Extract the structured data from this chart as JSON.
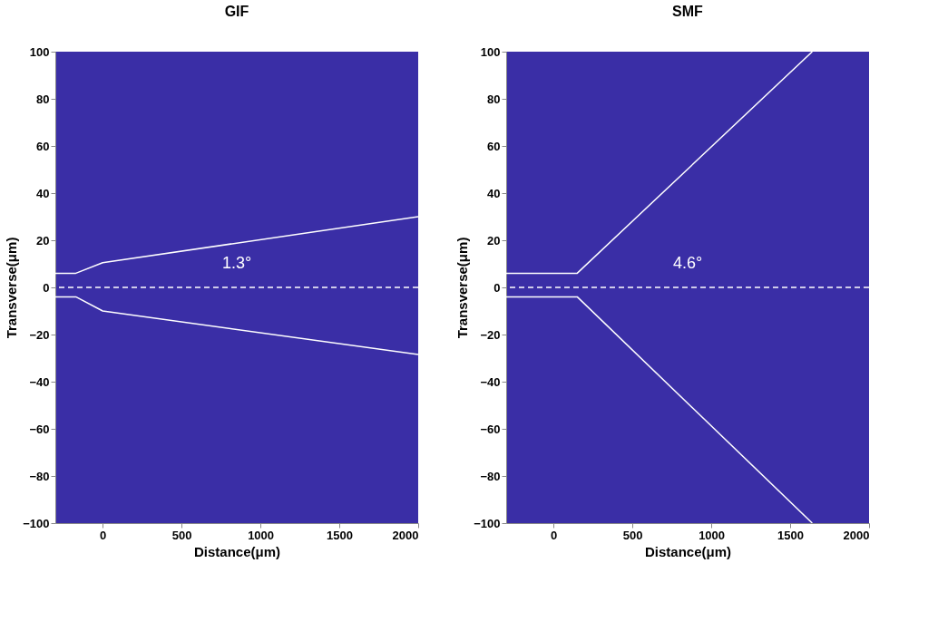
{
  "chart_data": [
    {
      "type": "line",
      "title": "GIF",
      "xlabel": "Distance(μm)",
      "ylabel": "Transverse(μm)",
      "xlim": [
        -300,
        2000
      ],
      "xticks": [
        0,
        500,
        1000,
        1500,
        2000
      ],
      "ylim": [
        -100,
        100
      ],
      "yticks": [
        -100,
        -80,
        -60,
        -40,
        -20,
        0,
        20,
        40,
        60,
        80,
        100
      ],
      "grid": false,
      "legend": false,
      "series": [
        {
          "color": "#ffffff",
          "x": [
            -300,
            -170,
            0,
            2000
          ],
          "values": [
            6,
            6,
            10.5,
            30
          ]
        },
        {
          "color": "#ffffff",
          "x": [
            -300,
            -170,
            0,
            2000
          ],
          "values": [
            -4,
            -4,
            -10,
            -28.5
          ]
        }
      ],
      "ref_lines": [
        {
          "axis": "y",
          "value": 0,
          "color": "#ffffff",
          "line_style": "dashed"
        }
      ],
      "annotations": [
        "1.3°"
      ]
    },
    {
      "type": "line",
      "title": "SMF",
      "xlabel": "Distance(μm)",
      "ylabel": "Transverse(μm)",
      "xlim": [
        -300,
        2000
      ],
      "xticks": [
        0,
        500,
        1000,
        1500,
        2000
      ],
      "ylim": [
        -100,
        100
      ],
      "yticks": [
        -100,
        -80,
        -60,
        -40,
        -20,
        0,
        20,
        40,
        60,
        80,
        100
      ],
      "grid": false,
      "legend": false,
      "series": [
        {
          "color": "#ffffff",
          "x": [
            -300,
            150,
            1640
          ],
          "values": [
            6,
            6,
            100
          ]
        },
        {
          "color": "#ffffff",
          "x": [
            -300,
            150,
            1640
          ],
          "values": [
            -4,
            -4,
            -100
          ]
        }
      ],
      "ref_lines": [
        {
          "axis": "y",
          "value": 0,
          "color": "#ffffff",
          "line_style": "dashed"
        }
      ],
      "annotations": [
        "4.6°"
      ]
    }
  ]
}
